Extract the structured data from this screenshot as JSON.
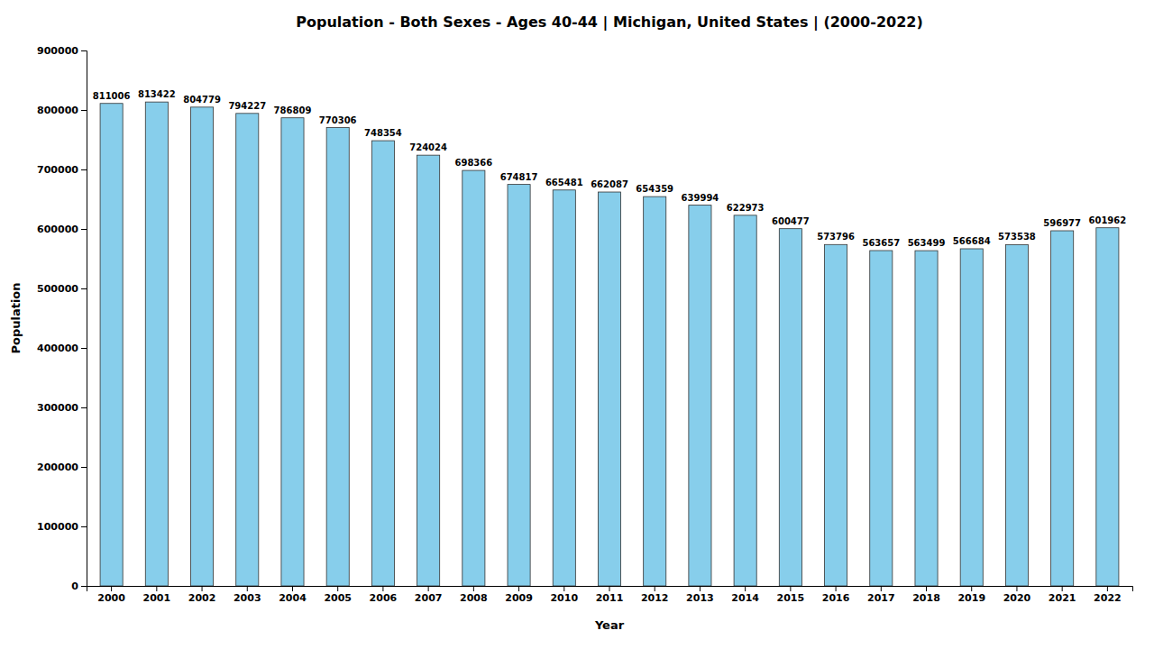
{
  "chart_data": {
    "type": "bar",
    "title": "Population - Both Sexes - Ages 40-44 | Michigan, United States |   (2000-2022)",
    "xlabel": "Year",
    "ylabel": "Population",
    "categories": [
      "2000",
      "2001",
      "2002",
      "2003",
      "2004",
      "2005",
      "2006",
      "2007",
      "2008",
      "2009",
      "2010",
      "2011",
      "2012",
      "2013",
      "2014",
      "2015",
      "2016",
      "2017",
      "2018",
      "2019",
      "2020",
      "2021",
      "2022"
    ],
    "values": [
      811006,
      813422,
      804779,
      794227,
      786809,
      770306,
      748354,
      724024,
      698366,
      674817,
      665481,
      662087,
      654359,
      639994,
      622973,
      600477,
      573796,
      563657,
      563499,
      566684,
      573538,
      596977,
      601962
    ],
    "color": "#87CEEB",
    "ylim": [
      0,
      900000
    ],
    "yticks": [
      0,
      100000,
      200000,
      300000,
      400000,
      500000,
      600000,
      700000,
      800000,
      900000
    ],
    "grid": false,
    "data_labels": true
  }
}
